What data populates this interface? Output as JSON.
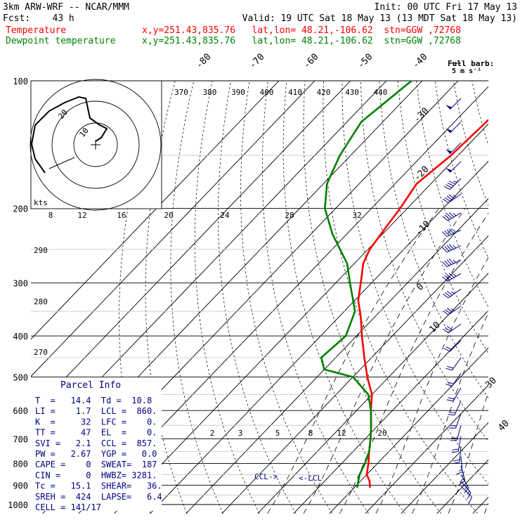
{
  "header": {
    "model": "3km ARW-WRF -- NCAR/MMM",
    "init": "Init: 00 UTC Fri 17 May 13",
    "fcst": "Fcst:    43 h",
    "valid": "Valid: 19 UTC Sat 18 May 13 (13 MDT Sat 18 May 13)",
    "temperature_label": "Temperature",
    "temperature_loc": "x,y=251.43,835.76   lat,lon= 48.21,-106.62  stn=GGW ,72768",
    "dewpoint_label": "Dewpoint temperature",
    "dewpoint_loc": "x,y=251.43,835.76   lat,lon= 48.21,-106.62  stn=GGW ,72768",
    "full_barb_line1": "Full barb:",
    "full_barb_line2": "5 m s⁻¹"
  },
  "colors": {
    "temperature": "#ff0000",
    "dewpoint": "#008000",
    "text": "#000000",
    "annotation": "#000080",
    "isobar": "#000000",
    "reference_line": "#000000"
  },
  "parcel_info": {
    "title": "Parcel Info",
    "rows": [
      "T  =   14.4  Td =  10.8",
      "LI =    1.7  LCL =  860.",
      "K  =     32  LFC =    0.",
      "TT =     47  EL  =    0.",
      "SVI =   2.1  CCL =  857.",
      "PW =   2.67  YGP =   0.0",
      "CAPE =    0  SWEAT=  187",
      "CIN =     0  HWBZ= 3281.",
      "Tc =   15.1  SHEAR=   36.",
      "SREH =  424  LAPSE=   6.4",
      "CELL = 141/17"
    ]
  },
  "hodograph": {
    "ring_labels": [
      "20",
      "10"
    ],
    "speed_unit": "kts"
  },
  "lcl_labels": {
    "ccl": "CCL->",
    "lcl": "<-LCL"
  },
  "chart_data": {
    "type": "line",
    "title": "",
    "xlabel": "Temperature (°C)",
    "ylabel": "Pressure (hPa)",
    "pressure_levels": [
      100,
      200,
      300,
      400,
      500,
      600,
      700,
      800,
      900,
      1000
    ],
    "isotherm_labels": [
      "-80",
      "-70",
      "-60",
      "-50",
      "-40",
      "-30",
      "-20",
      "-10",
      "0",
      "10",
      "30",
      "40"
    ],
    "theta_e_labels": [
      "370",
      "380",
      "390",
      "400",
      "410",
      "420",
      "430",
      "440"
    ],
    "mixing_ratio_labels_top": [
      "8",
      "12",
      "16",
      "20",
      "24",
      "28",
      "32"
    ],
    "mixing_ratio_labels_low": [
      "2",
      "3",
      "5",
      "8",
      "12",
      "20"
    ],
    "theta_labels": [
      "290",
      "280",
      "270"
    ],
    "series": [
      {
        "name": "Temperature",
        "points": [
          {
            "p": 100,
            "t": -50
          },
          {
            "p": 150,
            "t": -52
          },
          {
            "p": 175,
            "t": -54
          },
          {
            "p": 200,
            "t": -52
          },
          {
            "p": 220,
            "t": -51
          },
          {
            "p": 250,
            "t": -49.5
          },
          {
            "p": 270,
            "t": -47.5
          },
          {
            "p": 300,
            "t": -43
          },
          {
            "p": 330,
            "t": -39
          },
          {
            "p": 360,
            "t": -34
          },
          {
            "p": 400,
            "t": -28.5
          },
          {
            "p": 450,
            "t": -22
          },
          {
            "p": 500,
            "t": -16
          },
          {
            "p": 550,
            "t": -10
          },
          {
            "p": 600,
            "t": -6
          },
          {
            "p": 650,
            "t": -2
          },
          {
            "p": 700,
            "t": 1.5
          },
          {
            "p": 750,
            "t": 4.5
          },
          {
            "p": 800,
            "t": 7.5
          },
          {
            "p": 850,
            "t": 10
          },
          {
            "p": 880,
            "t": 12.5
          },
          {
            "p": 912,
            "t": 14.4
          }
        ]
      },
      {
        "name": "Dewpoint temperature",
        "points": [
          {
            "p": 100,
            "t": -83
          },
          {
            "p": 125,
            "t": -86
          },
          {
            "p": 150,
            "t": -83
          },
          {
            "p": 175,
            "t": -79
          },
          {
            "p": 200,
            "t": -73
          },
          {
            "p": 230,
            "t": -64
          },
          {
            "p": 270,
            "t": -52
          },
          {
            "p": 300,
            "t": -46
          },
          {
            "p": 350,
            "t": -37
          },
          {
            "p": 400,
            "t": -33
          },
          {
            "p": 450,
            "t": -34
          },
          {
            "p": 480,
            "t": -30
          },
          {
            "p": 500,
            "t": -20
          },
          {
            "p": 550,
            "t": -11
          },
          {
            "p": 600,
            "t": -6
          },
          {
            "p": 650,
            "t": -2
          },
          {
            "p": 700,
            "t": 1.5
          },
          {
            "p": 750,
            "t": 4.5
          },
          {
            "p": 800,
            "t": 6.5
          },
          {
            "p": 850,
            "t": 8
          },
          {
            "p": 912,
            "t": 10.8
          }
        ]
      }
    ],
    "wind_barbs": [
      {
        "p": 110,
        "dir": 225,
        "kts": 50
      },
      {
        "p": 125,
        "dir": 225,
        "kts": 50
      },
      {
        "p": 140,
        "dir": 225,
        "kts": 50
      },
      {
        "p": 155,
        "dir": 225,
        "kts": 50
      },
      {
        "p": 170,
        "dir": 225,
        "kts": 45
      },
      {
        "p": 185,
        "dir": 235,
        "kts": 45
      },
      {
        "p": 205,
        "dir": 240,
        "kts": 45
      },
      {
        "p": 225,
        "dir": 245,
        "kts": 45
      },
      {
        "p": 245,
        "dir": 245,
        "kts": 45
      },
      {
        "p": 265,
        "dir": 245,
        "kts": 45
      },
      {
        "p": 285,
        "dir": 240,
        "kts": 45
      },
      {
        "p": 310,
        "dir": 235,
        "kts": 35
      },
      {
        "p": 340,
        "dir": 235,
        "kts": 35
      },
      {
        "p": 375,
        "dir": 235,
        "kts": 30
      },
      {
        "p": 410,
        "dir": 225,
        "kts": 20
      },
      {
        "p": 450,
        "dir": 215,
        "kts": 20
      },
      {
        "p": 490,
        "dir": 215,
        "kts": 20
      },
      {
        "p": 530,
        "dir": 210,
        "kts": 20
      },
      {
        "p": 570,
        "dir": 205,
        "kts": 20
      },
      {
        "p": 610,
        "dir": 200,
        "kts": 20
      },
      {
        "p": 650,
        "dir": 195,
        "kts": 20
      },
      {
        "p": 690,
        "dir": 190,
        "kts": 20
      },
      {
        "p": 730,
        "dir": 185,
        "kts": 20
      },
      {
        "p": 770,
        "dir": 175,
        "kts": 15
      },
      {
        "p": 810,
        "dir": 165,
        "kts": 15
      },
      {
        "p": 850,
        "dir": 150,
        "kts": 15
      },
      {
        "p": 880,
        "dir": 140,
        "kts": 15
      },
      {
        "p": 905,
        "dir": 135,
        "kts": 10
      }
    ]
  }
}
